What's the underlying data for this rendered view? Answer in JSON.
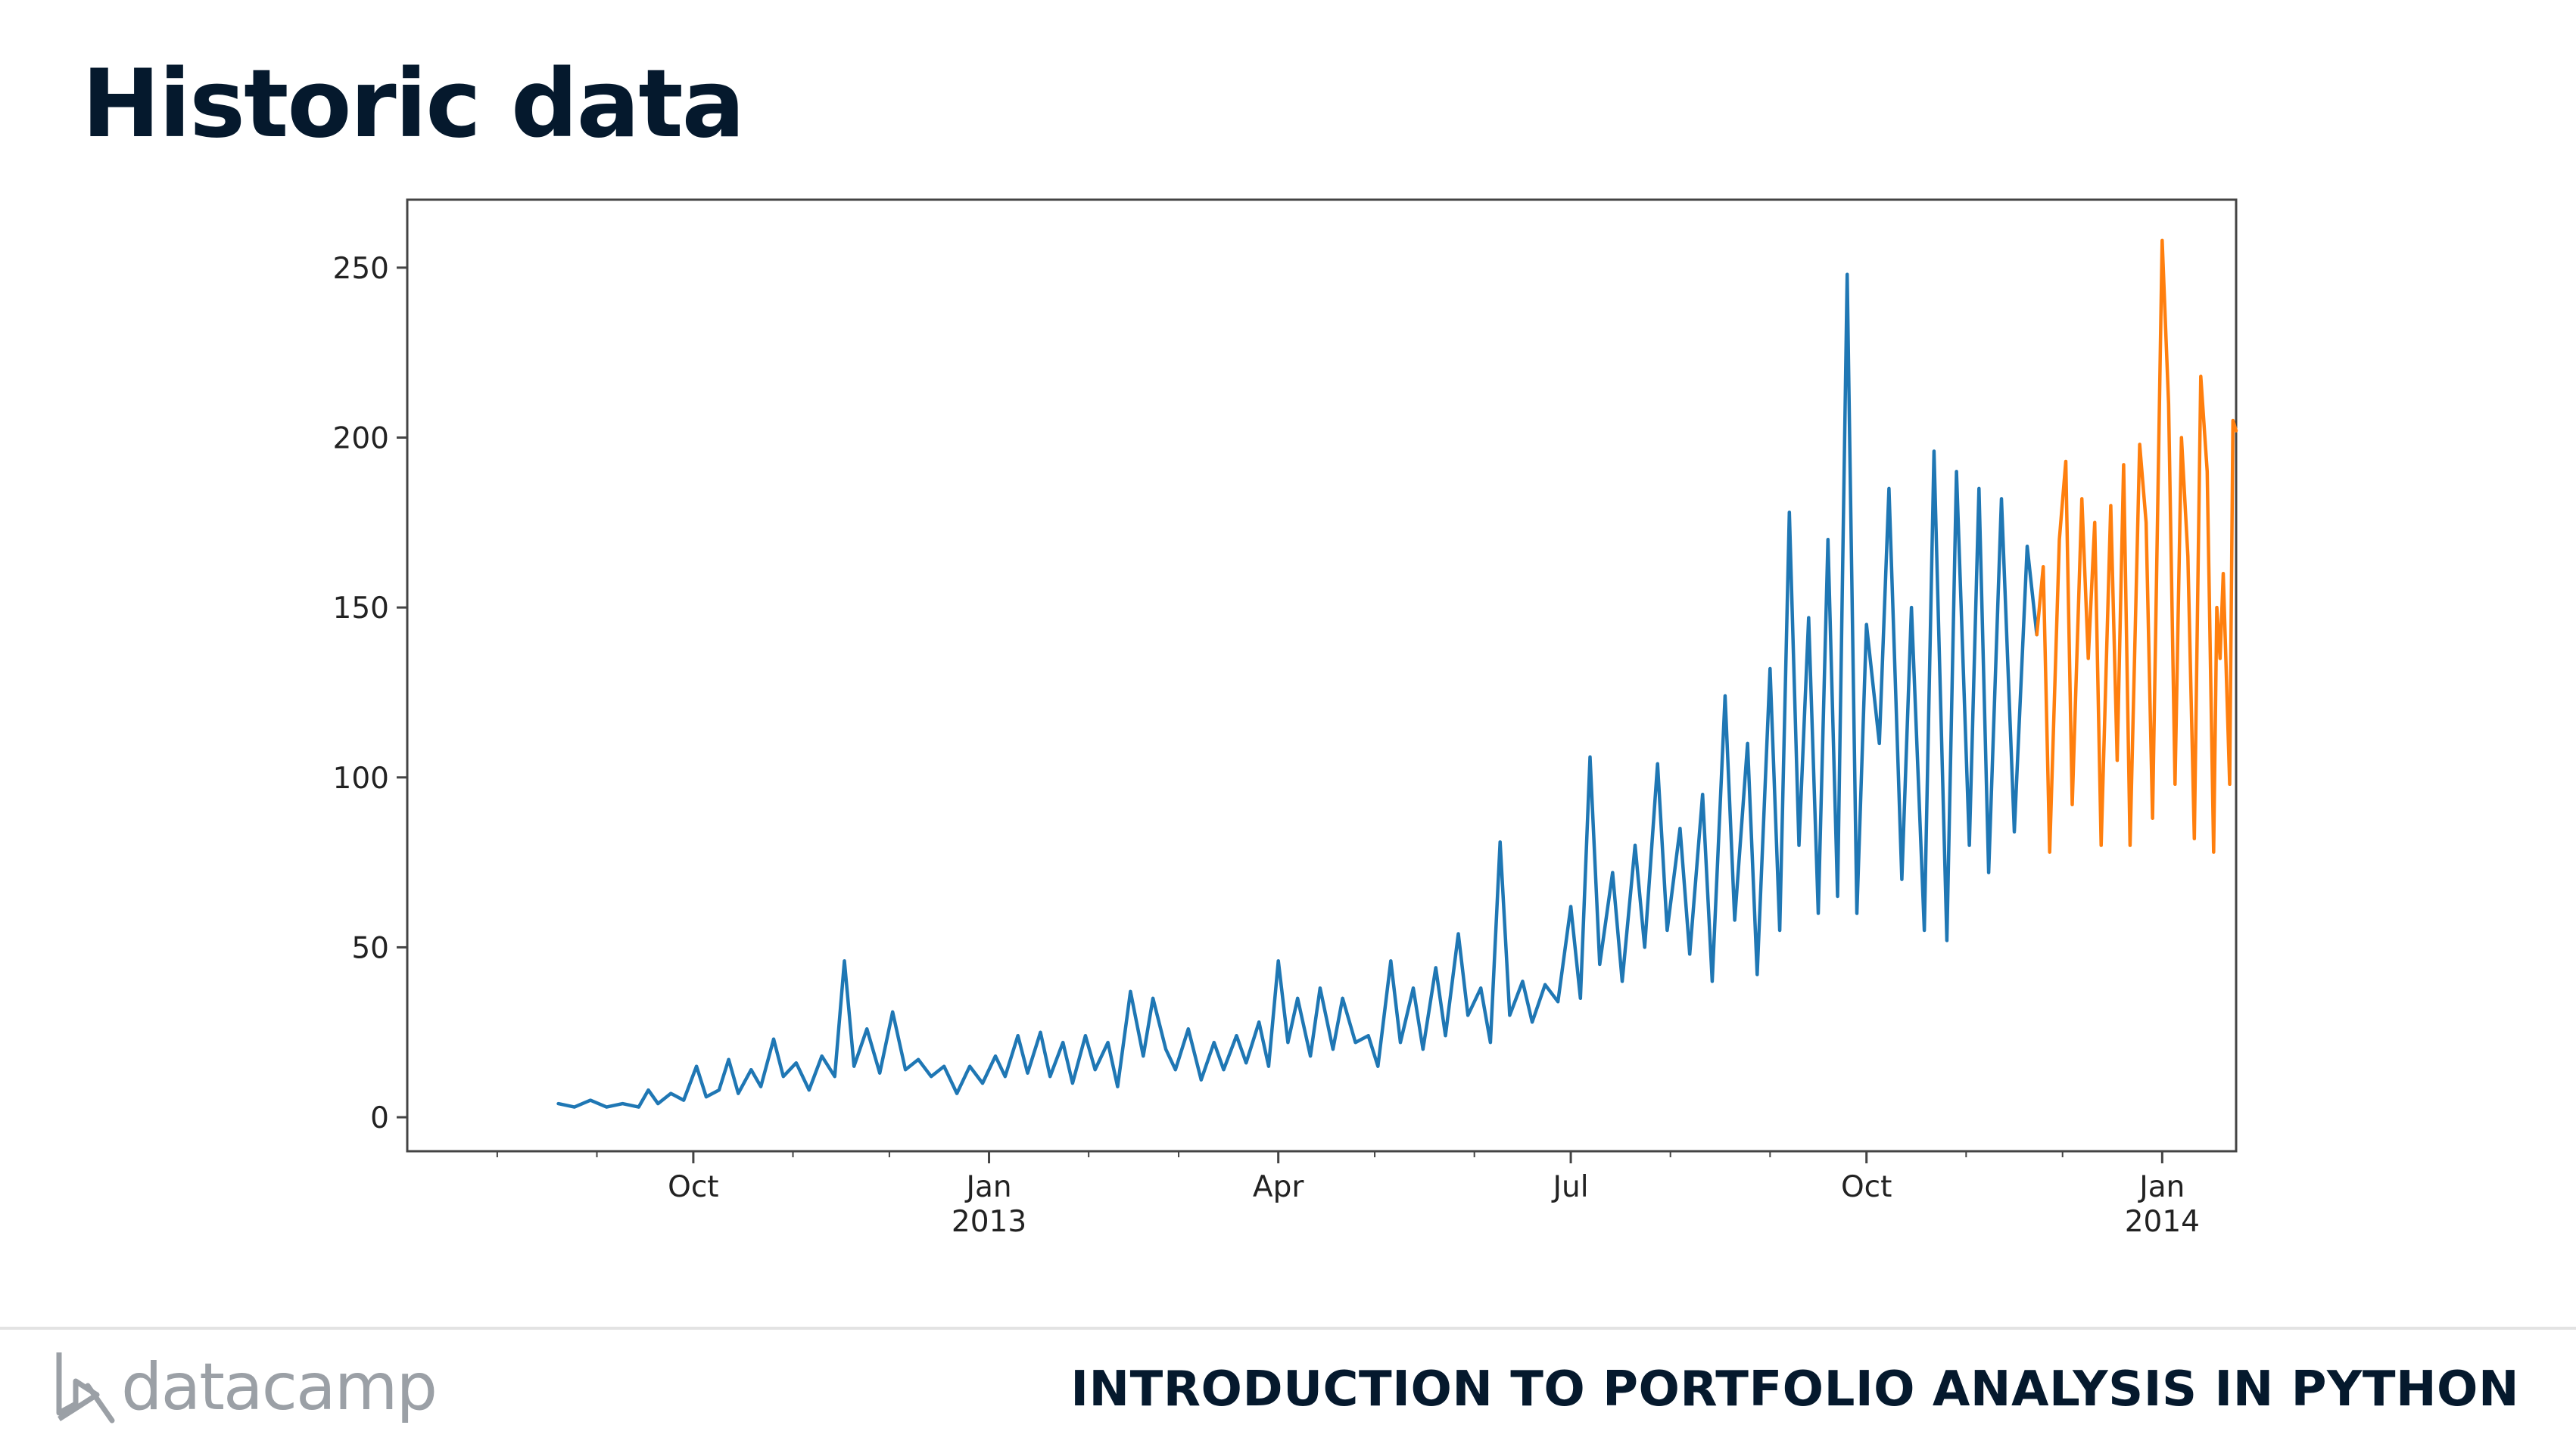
{
  "slide": {
    "title": "Historic data",
    "course_title": "INTRODUCTION TO PORTFOLIO ANALYSIS IN PYTHON",
    "brand": "datacamp"
  },
  "colors": {
    "historic_series": "#1f77b4",
    "forecast_series": "#ff7f0e",
    "title": "#05192d",
    "logo": "#9ba0a6"
  },
  "chart_data": {
    "type": "line",
    "x_axis": {
      "type": "date",
      "range": [
        "2012-07-04",
        "2014-01-24"
      ],
      "major_ticks": [
        {
          "date": "2012-10-01",
          "label": "Oct",
          "sublabel": ""
        },
        {
          "date": "2013-01-01",
          "label": "Jan",
          "sublabel": "2013"
        },
        {
          "date": "2013-04-01",
          "label": "Apr",
          "sublabel": ""
        },
        {
          "date": "2013-07-01",
          "label": "Jul",
          "sublabel": ""
        },
        {
          "date": "2013-10-01",
          "label": "Oct",
          "sublabel": ""
        },
        {
          "date": "2014-01-01",
          "label": "Jan",
          "sublabel": "2014"
        }
      ]
    },
    "y_axis": {
      "range": [
        -10,
        270
      ],
      "ticks": [
        0,
        50,
        100,
        150,
        200,
        250
      ]
    },
    "grid": false,
    "legend": "none",
    "series": [
      {
        "color_key": "historic_series",
        "points": [
          [
            "2012-08-20",
            4
          ],
          [
            "2012-08-25",
            3
          ],
          [
            "2012-08-30",
            5
          ],
          [
            "2012-09-04",
            3
          ],
          [
            "2012-09-09",
            4
          ],
          [
            "2012-09-14",
            3
          ],
          [
            "2012-09-17",
            8
          ],
          [
            "2012-09-20",
            4
          ],
          [
            "2012-09-24",
            7
          ],
          [
            "2012-09-28",
            5
          ],
          [
            "2012-10-02",
            15
          ],
          [
            "2012-10-05",
            6
          ],
          [
            "2012-10-09",
            8
          ],
          [
            "2012-10-12",
            17
          ],
          [
            "2012-10-15",
            7
          ],
          [
            "2012-10-19",
            14
          ],
          [
            "2012-10-22",
            9
          ],
          [
            "2012-10-26",
            23
          ],
          [
            "2012-10-29",
            12
          ],
          [
            "2012-11-02",
            16
          ],
          [
            "2012-11-06",
            8
          ],
          [
            "2012-11-10",
            18
          ],
          [
            "2012-11-14",
            12
          ],
          [
            "2012-11-17",
            46
          ],
          [
            "2012-11-20",
            15
          ],
          [
            "2012-11-24",
            26
          ],
          [
            "2012-11-28",
            13
          ],
          [
            "2012-12-02",
            31
          ],
          [
            "2012-12-06",
            14
          ],
          [
            "2012-12-10",
            17
          ],
          [
            "2012-12-14",
            12
          ],
          [
            "2012-12-18",
            15
          ],
          [
            "2012-12-22",
            7
          ],
          [
            "2012-12-26",
            15
          ],
          [
            "2012-12-30",
            10
          ],
          [
            "2013-01-03",
            18
          ],
          [
            "2013-01-06",
            12
          ],
          [
            "2013-01-10",
            24
          ],
          [
            "2013-01-13",
            13
          ],
          [
            "2013-01-17",
            25
          ],
          [
            "2013-01-20",
            12
          ],
          [
            "2013-01-24",
            22
          ],
          [
            "2013-01-27",
            10
          ],
          [
            "2013-01-31",
            24
          ],
          [
            "2013-02-03",
            14
          ],
          [
            "2013-02-07",
            22
          ],
          [
            "2013-02-10",
            9
          ],
          [
            "2013-02-14",
            37
          ],
          [
            "2013-02-18",
            18
          ],
          [
            "2013-02-21",
            35
          ],
          [
            "2013-02-25",
            20
          ],
          [
            "2013-02-28",
            14
          ],
          [
            "2013-03-04",
            26
          ],
          [
            "2013-03-08",
            11
          ],
          [
            "2013-03-12",
            22
          ],
          [
            "2013-03-15",
            14
          ],
          [
            "2013-03-19",
            24
          ],
          [
            "2013-03-22",
            16
          ],
          [
            "2013-03-26",
            28
          ],
          [
            "2013-03-29",
            15
          ],
          [
            "2013-04-01",
            46
          ],
          [
            "2013-04-04",
            22
          ],
          [
            "2013-04-07",
            35
          ],
          [
            "2013-04-11",
            18
          ],
          [
            "2013-04-14",
            38
          ],
          [
            "2013-04-18",
            20
          ],
          [
            "2013-04-21",
            35
          ],
          [
            "2013-04-25",
            22
          ],
          [
            "2013-04-29",
            24
          ],
          [
            "2013-05-02",
            15
          ],
          [
            "2013-05-06",
            46
          ],
          [
            "2013-05-09",
            22
          ],
          [
            "2013-05-13",
            38
          ],
          [
            "2013-05-16",
            20
          ],
          [
            "2013-05-20",
            44
          ],
          [
            "2013-05-23",
            24
          ],
          [
            "2013-05-27",
            54
          ],
          [
            "2013-05-30",
            30
          ],
          [
            "2013-06-03",
            38
          ],
          [
            "2013-06-06",
            22
          ],
          [
            "2013-06-09",
            81
          ],
          [
            "2013-06-12",
            30
          ],
          [
            "2013-06-16",
            40
          ],
          [
            "2013-06-19",
            28
          ],
          [
            "2013-06-23",
            39
          ],
          [
            "2013-06-27",
            34
          ],
          [
            "2013-07-01",
            62
          ],
          [
            "2013-07-04",
            35
          ],
          [
            "2013-07-07",
            106
          ],
          [
            "2013-07-10",
            45
          ],
          [
            "2013-07-14",
            72
          ],
          [
            "2013-07-17",
            40
          ],
          [
            "2013-07-21",
            80
          ],
          [
            "2013-07-24",
            50
          ],
          [
            "2013-07-28",
            104
          ],
          [
            "2013-07-31",
            55
          ],
          [
            "2013-08-04",
            85
          ],
          [
            "2013-08-07",
            48
          ],
          [
            "2013-08-11",
            95
          ],
          [
            "2013-08-14",
            40
          ],
          [
            "2013-08-18",
            124
          ],
          [
            "2013-08-21",
            58
          ],
          [
            "2013-08-25",
            110
          ],
          [
            "2013-08-28",
            42
          ],
          [
            "2013-09-01",
            132
          ],
          [
            "2013-09-04",
            55
          ],
          [
            "2013-09-07",
            178
          ],
          [
            "2013-09-10",
            80
          ],
          [
            "2013-09-13",
            147
          ],
          [
            "2013-09-16",
            60
          ],
          [
            "2013-09-19",
            170
          ],
          [
            "2013-09-22",
            65
          ],
          [
            "2013-09-25",
            248
          ],
          [
            "2013-09-28",
            60
          ],
          [
            "2013-10-01",
            145
          ],
          [
            "2013-10-05",
            110
          ],
          [
            "2013-10-08",
            185
          ],
          [
            "2013-10-12",
            70
          ],
          [
            "2013-10-15",
            150
          ],
          [
            "2013-10-19",
            55
          ],
          [
            "2013-10-22",
            196
          ],
          [
            "2013-10-26",
            52
          ],
          [
            "2013-10-29",
            190
          ],
          [
            "2013-11-02",
            80
          ],
          [
            "2013-11-05",
            185
          ],
          [
            "2013-11-08",
            72
          ],
          [
            "2013-11-12",
            182
          ],
          [
            "2013-11-16",
            84
          ],
          [
            "2013-11-20",
            168
          ],
          [
            "2013-11-23",
            142
          ]
        ]
      },
      {
        "color_key": "forecast_series",
        "points": [
          [
            "2013-11-23",
            142
          ],
          [
            "2013-11-25",
            162
          ],
          [
            "2013-11-27",
            78
          ],
          [
            "2013-11-30",
            170
          ],
          [
            "2013-12-02",
            193
          ],
          [
            "2013-12-04",
            92
          ],
          [
            "2013-12-07",
            182
          ],
          [
            "2013-12-09",
            135
          ],
          [
            "2013-12-11",
            175
          ],
          [
            "2013-12-13",
            80
          ],
          [
            "2013-12-16",
            180
          ],
          [
            "2013-12-18",
            105
          ],
          [
            "2013-12-20",
            192
          ],
          [
            "2013-12-22",
            80
          ],
          [
            "2013-12-25",
            198
          ],
          [
            "2013-12-27",
            175
          ],
          [
            "2013-12-29",
            88
          ],
          [
            "2014-01-01",
            258
          ],
          [
            "2014-01-03",
            210
          ],
          [
            "2014-01-05",
            98
          ],
          [
            "2014-01-07",
            200
          ],
          [
            "2014-01-09",
            165
          ],
          [
            "2014-01-11",
            82
          ],
          [
            "2014-01-13",
            218
          ],
          [
            "2014-01-15",
            190
          ],
          [
            "2014-01-17",
            78
          ],
          [
            "2014-01-18",
            150
          ],
          [
            "2014-01-19",
            135
          ],
          [
            "2014-01-20",
            160
          ],
          [
            "2014-01-22",
            98
          ],
          [
            "2014-01-23",
            205
          ],
          [
            "2014-01-24",
            202
          ]
        ]
      }
    ]
  }
}
